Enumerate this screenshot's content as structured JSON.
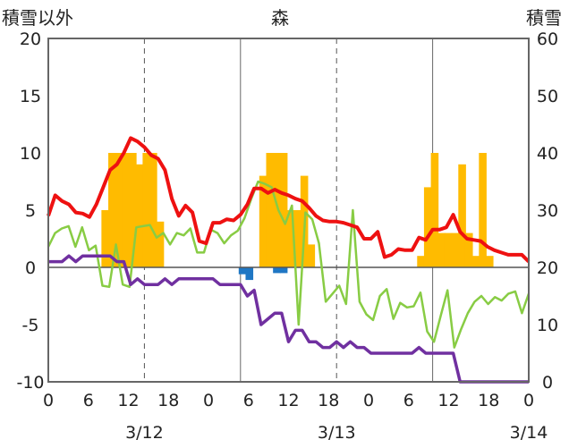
{
  "chart_data": {
    "type": "bar+line",
    "title": "森",
    "left_axis_label": "積雪以外",
    "right_axis_label": "積雪",
    "y_left": {
      "min": -10,
      "max": 20,
      "ticks": [
        20,
        15,
        10,
        5,
        0,
        -5,
        -10
      ]
    },
    "y_right": {
      "min": 0,
      "max": 60,
      "ticks": [
        60,
        50,
        40,
        30,
        20,
        10,
        0
      ]
    },
    "x_hours_total": 60,
    "x_tick_labels": [
      "0",
      "6",
      "12",
      "18",
      "0",
      "6",
      "12",
      "18",
      "0",
      "6",
      "12",
      "18",
      "0"
    ],
    "date_labels": [
      "3/12",
      "3/13",
      "3/14"
    ],
    "grid": "dashed vertical at 12h, solid at day boundaries",
    "colors": {
      "red": "#ee1111",
      "green": "#88cc44",
      "purple": "#7030a0",
      "orange": "#ffbb00",
      "blue": "#1f77c4"
    },
    "bars_orange": [
      [
        7,
        0
      ],
      [
        8,
        5
      ],
      [
        9,
        10
      ],
      [
        10,
        10
      ],
      [
        11,
        10
      ],
      [
        12,
        10
      ],
      [
        13,
        9
      ],
      [
        14,
        10
      ],
      [
        15,
        10
      ],
      [
        16,
        4
      ],
      [
        31,
        8
      ],
      [
        32,
        10
      ],
      [
        33,
        10
      ],
      [
        34,
        10
      ],
      [
        35,
        5
      ],
      [
        36,
        5
      ],
      [
        37,
        8
      ],
      [
        38,
        2
      ],
      [
        54,
        1
      ],
      [
        55,
        7
      ],
      [
        56,
        10
      ],
      [
        57,
        3
      ],
      [
        58,
        3
      ],
      [
        59,
        3
      ],
      [
        60,
        9
      ],
      [
        61,
        3
      ],
      [
        62,
        1
      ],
      [
        63,
        10
      ],
      [
        64,
        1
      ]
    ],
    "bars_blue": [
      [
        28,
        -0.6
      ],
      [
        29,
        -1.1
      ],
      [
        33,
        -0.5
      ],
      [
        34,
        -0.5
      ]
    ],
    "red_series": [
      4.5,
      6.3,
      5.8,
      5.5,
      4.8,
      4.7,
      4.4,
      5.5,
      7.0,
      8.5,
      9.0,
      10.0,
      11.3,
      11.0,
      10.5,
      9.8,
      9.5,
      8.5,
      6.0,
      4.5,
      5.4,
      4.8,
      2.3,
      2.1,
      3.9,
      3.9,
      4.2,
      4.1,
      4.6,
      5.5,
      6.9,
      6.9,
      6.5,
      6.8,
      6.5,
      6.3,
      6.0,
      5.8,
      5.2,
      4.5,
      4.1,
      4.0,
      4.0,
      3.9,
      3.7,
      3.5,
      2.5,
      2.5,
      3.1,
      0.9,
      1.1,
      1.6,
      1.5,
      1.5,
      2.6,
      2.4,
      3.3,
      3.3,
      3.5,
      4.6,
      3.1,
      2.5,
      2.4,
      2.3,
      1.8,
      1.5,
      1.3,
      1.1,
      1.1,
      1.1,
      0.5
    ],
    "green_series": [
      1.8,
      3.0,
      3.4,
      3.6,
      1.8,
      3.5,
      1.5,
      1.9,
      -1.6,
      -1.7,
      2.0,
      -1.5,
      -1.7,
      3.5,
      3.6,
      3.7,
      2.6,
      3.0,
      2.0,
      3.0,
      2.8,
      3.4,
      1.3,
      1.3,
      3.3,
      3.0,
      2.1,
      2.8,
      3.2,
      4.3,
      6.0,
      7.5,
      7.3,
      7.0,
      5.0,
      3.8,
      5.4,
      -5.0,
      4.8,
      4.2,
      2.1,
      -3.0,
      -2.3,
      -1.6,
      -3.2,
      5.0,
      -3.0,
      -4.1,
      -4.6,
      -2.5,
      -1.9,
      -4.5,
      -3.1,
      -3.5,
      -3.4,
      -2.2,
      -5.6,
      -6.5,
      -4.2,
      -2.0,
      -7.0,
      -5.4,
      -4.0,
      -3.0,
      -2.5,
      -3.2,
      -2.6,
      -2.9,
      -2.3,
      -2.1,
      -4.0,
      -2.3
    ],
    "purple_series": [
      0.5,
      0.5,
      0.5,
      1.0,
      0.5,
      1.0,
      1.0,
      1.0,
      1.0,
      1.0,
      0.5,
      0.5,
      -1.5,
      -1.0,
      -1.5,
      -1.5,
      -1.5,
      -1.0,
      -1.5,
      -1.0,
      -1.0,
      -1.0,
      -1.0,
      -1.0,
      -1.0,
      -1.5,
      -1.5,
      -1.5,
      -1.5,
      -2.5,
      -2.0,
      -5.0,
      -4.5,
      -4.0,
      -4.0,
      -6.5,
      -5.5,
      -5.5,
      -6.5,
      -6.5,
      -7.0,
      -7.0,
      -6.5,
      -7.0,
      -6.5,
      -7.0,
      -7.0,
      -7.5,
      -7.5,
      -7.5,
      -7.5,
      -7.5,
      -7.5,
      -7.5,
      -7.0,
      -7.5,
      -7.5,
      -7.5,
      -7.5,
      -7.5,
      -10.0,
      -10.0,
      -10.0,
      -10.0,
      -10.0,
      -10.0,
      -10.0,
      -10.0,
      -10.0,
      -10.0,
      -10.0
    ]
  }
}
